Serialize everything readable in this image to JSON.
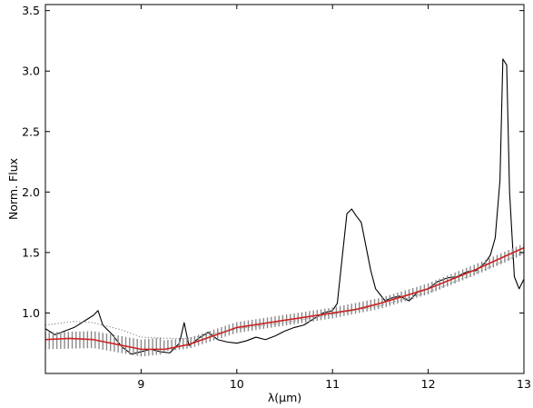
{
  "chart_data": {
    "type": "line",
    "title": "",
    "xlabel": "λ(μm)",
    "ylabel": "Norm. Flux",
    "xlim": [
      8.0,
      13.0
    ],
    "ylim": [
      0.5,
      3.55
    ],
    "xticks": [
      9,
      10,
      11,
      12,
      13
    ],
    "xtick_labels": [
      "9",
      "10",
      "11",
      "12",
      "13"
    ],
    "yticks": [
      1.0,
      1.5,
      2.0,
      2.5,
      3.0,
      3.5
    ],
    "ytick_labels": [
      "1.0",
      "1.5",
      "2.0",
      "2.5",
      "3.0",
      "3.5"
    ],
    "grid": false,
    "legend": "none",
    "series": [
      {
        "style": "black-line",
        "color": "#000000",
        "x": [
          8.0,
          8.1,
          8.2,
          8.3,
          8.4,
          8.5,
          8.55,
          8.6,
          8.7,
          8.8,
          8.9,
          9.0,
          9.1,
          9.2,
          9.3,
          9.4,
          9.45,
          9.5,
          9.6,
          9.7,
          9.8,
          9.9,
          10.0,
          10.1,
          10.2,
          10.3,
          10.4,
          10.5,
          10.6,
          10.7,
          10.8,
          10.9,
          11.0,
          11.05,
          11.1,
          11.15,
          11.2,
          11.25,
          11.3,
          11.35,
          11.4,
          11.45,
          11.5,
          11.55,
          11.6,
          11.7,
          11.8,
          11.9,
          12.0,
          12.1,
          12.2,
          12.3,
          12.4,
          12.5,
          12.6,
          12.65,
          12.7,
          12.75,
          12.78,
          12.82,
          12.85,
          12.9,
          12.95,
          13.0
        ],
        "y": [
          0.87,
          0.82,
          0.85,
          0.88,
          0.93,
          0.98,
          1.02,
          0.9,
          0.82,
          0.72,
          0.66,
          0.68,
          0.7,
          0.68,
          0.67,
          0.75,
          0.92,
          0.73,
          0.79,
          0.84,
          0.78,
          0.76,
          0.75,
          0.77,
          0.8,
          0.78,
          0.81,
          0.85,
          0.88,
          0.9,
          0.95,
          1.0,
          1.02,
          1.08,
          1.45,
          1.82,
          1.86,
          1.8,
          1.75,
          1.55,
          1.35,
          1.2,
          1.15,
          1.1,
          1.12,
          1.14,
          1.1,
          1.18,
          1.2,
          1.26,
          1.29,
          1.3,
          1.34,
          1.35,
          1.42,
          1.48,
          1.62,
          2.1,
          3.1,
          3.05,
          2.0,
          1.3,
          1.2,
          1.28
        ]
      },
      {
        "style": "grey-vertical-band",
        "color": "#8a8a8a",
        "x": [
          8.0,
          8.5,
          9.0,
          9.5,
          10.0,
          10.5,
          11.0,
          11.5,
          12.0,
          12.5,
          13.0
        ],
        "y": [
          0.77,
          0.78,
          0.71,
          0.75,
          0.88,
          0.94,
          1.0,
          1.08,
          1.2,
          1.36,
          1.53
        ]
      },
      {
        "style": "red-line",
        "color": "#cc2222",
        "x": [
          8.0,
          8.25,
          8.5,
          8.75,
          9.0,
          9.25,
          9.5,
          9.75,
          10.0,
          10.25,
          10.5,
          10.75,
          11.0,
          11.25,
          11.5,
          11.75,
          12.0,
          12.25,
          12.5,
          12.75,
          13.0
        ],
        "y": [
          0.78,
          0.79,
          0.78,
          0.74,
          0.7,
          0.7,
          0.74,
          0.81,
          0.88,
          0.91,
          0.94,
          0.97,
          1.0,
          1.03,
          1.08,
          1.14,
          1.2,
          1.28,
          1.36,
          1.45,
          1.54
        ]
      },
      {
        "style": "dotted-line",
        "color": "#777777",
        "x": [
          8.0,
          8.3,
          8.5,
          8.8,
          9.0,
          9.3,
          9.5,
          9.7,
          10.0,
          10.5,
          11.0,
          11.5,
          12.0,
          12.5,
          13.0
        ],
        "y": [
          0.9,
          0.93,
          0.92,
          0.86,
          0.8,
          0.79,
          0.79,
          0.82,
          0.87,
          0.92,
          0.99,
          1.06,
          1.17,
          1.33,
          1.5
        ]
      }
    ]
  }
}
